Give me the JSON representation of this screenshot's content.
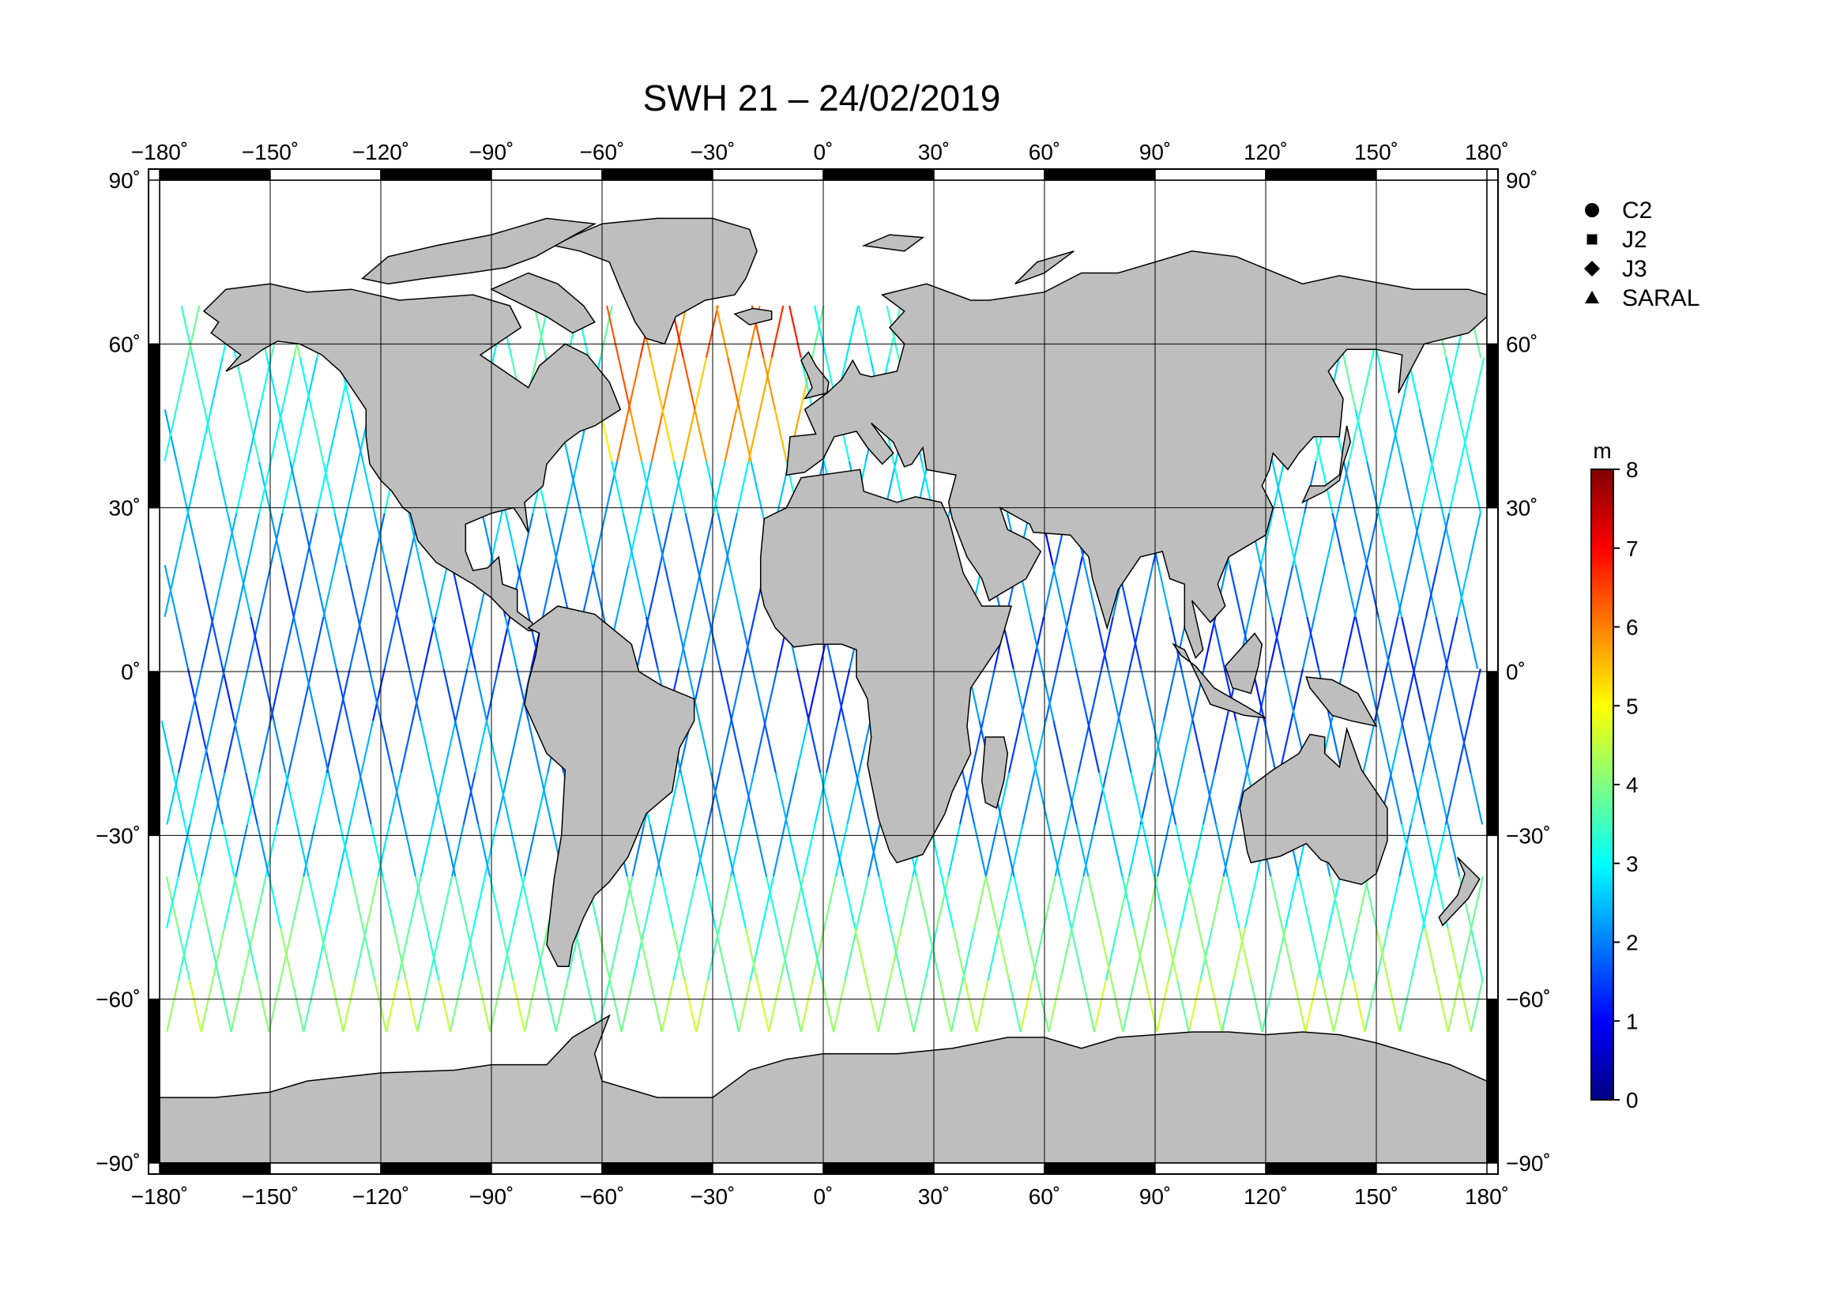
{
  "title": "SWH 21 – 24/02/2019",
  "chart_data": {
    "type": "map",
    "projection": "equirectangular",
    "lon_range": [
      -180,
      180
    ],
    "lat_range": [
      -90,
      90
    ],
    "lon_ticks": [
      -180,
      -150,
      -120,
      -90,
      -60,
      -30,
      0,
      30,
      60,
      90,
      120,
      150,
      180
    ],
    "lat_ticks": [
      -90,
      -60,
      -30,
      0,
      30,
      60,
      90
    ],
    "tick_lon_labels": [
      "−180˚",
      "−150˚",
      "−120˚",
      "−90˚",
      "−60˚",
      "−30˚",
      "0˚",
      "30˚",
      "60˚",
      "90˚",
      "120˚",
      "150˚",
      "180˚"
    ],
    "tick_lat_labels": [
      "−90˚",
      "−60˚",
      "−30˚",
      "0˚",
      "30˚",
      "60˚",
      "90˚"
    ],
    "grid": true,
    "colorbar": {
      "unit": "m",
      "min": 0,
      "max": 8,
      "tick_labels": [
        "0",
        "1",
        "2",
        "3",
        "4",
        "5",
        "6",
        "7",
        "8"
      ],
      "colors": [
        "#000080",
        "#0000ff",
        "#0080ff",
        "#00ffff",
        "#80ff80",
        "#ffff00",
        "#ff8000",
        "#ff0000",
        "#800000"
      ]
    },
    "legend": {
      "placement": "top-right",
      "entries": [
        {
          "label": "C2",
          "marker": "circle"
        },
        {
          "label": "J2",
          "marker": "square"
        },
        {
          "label": "J3",
          "marker": "diamond"
        },
        {
          "label": "SARAL",
          "marker": "triangle"
        }
      ]
    },
    "land_color": "#bebebe",
    "ocean_color": "#ffffff"
  }
}
